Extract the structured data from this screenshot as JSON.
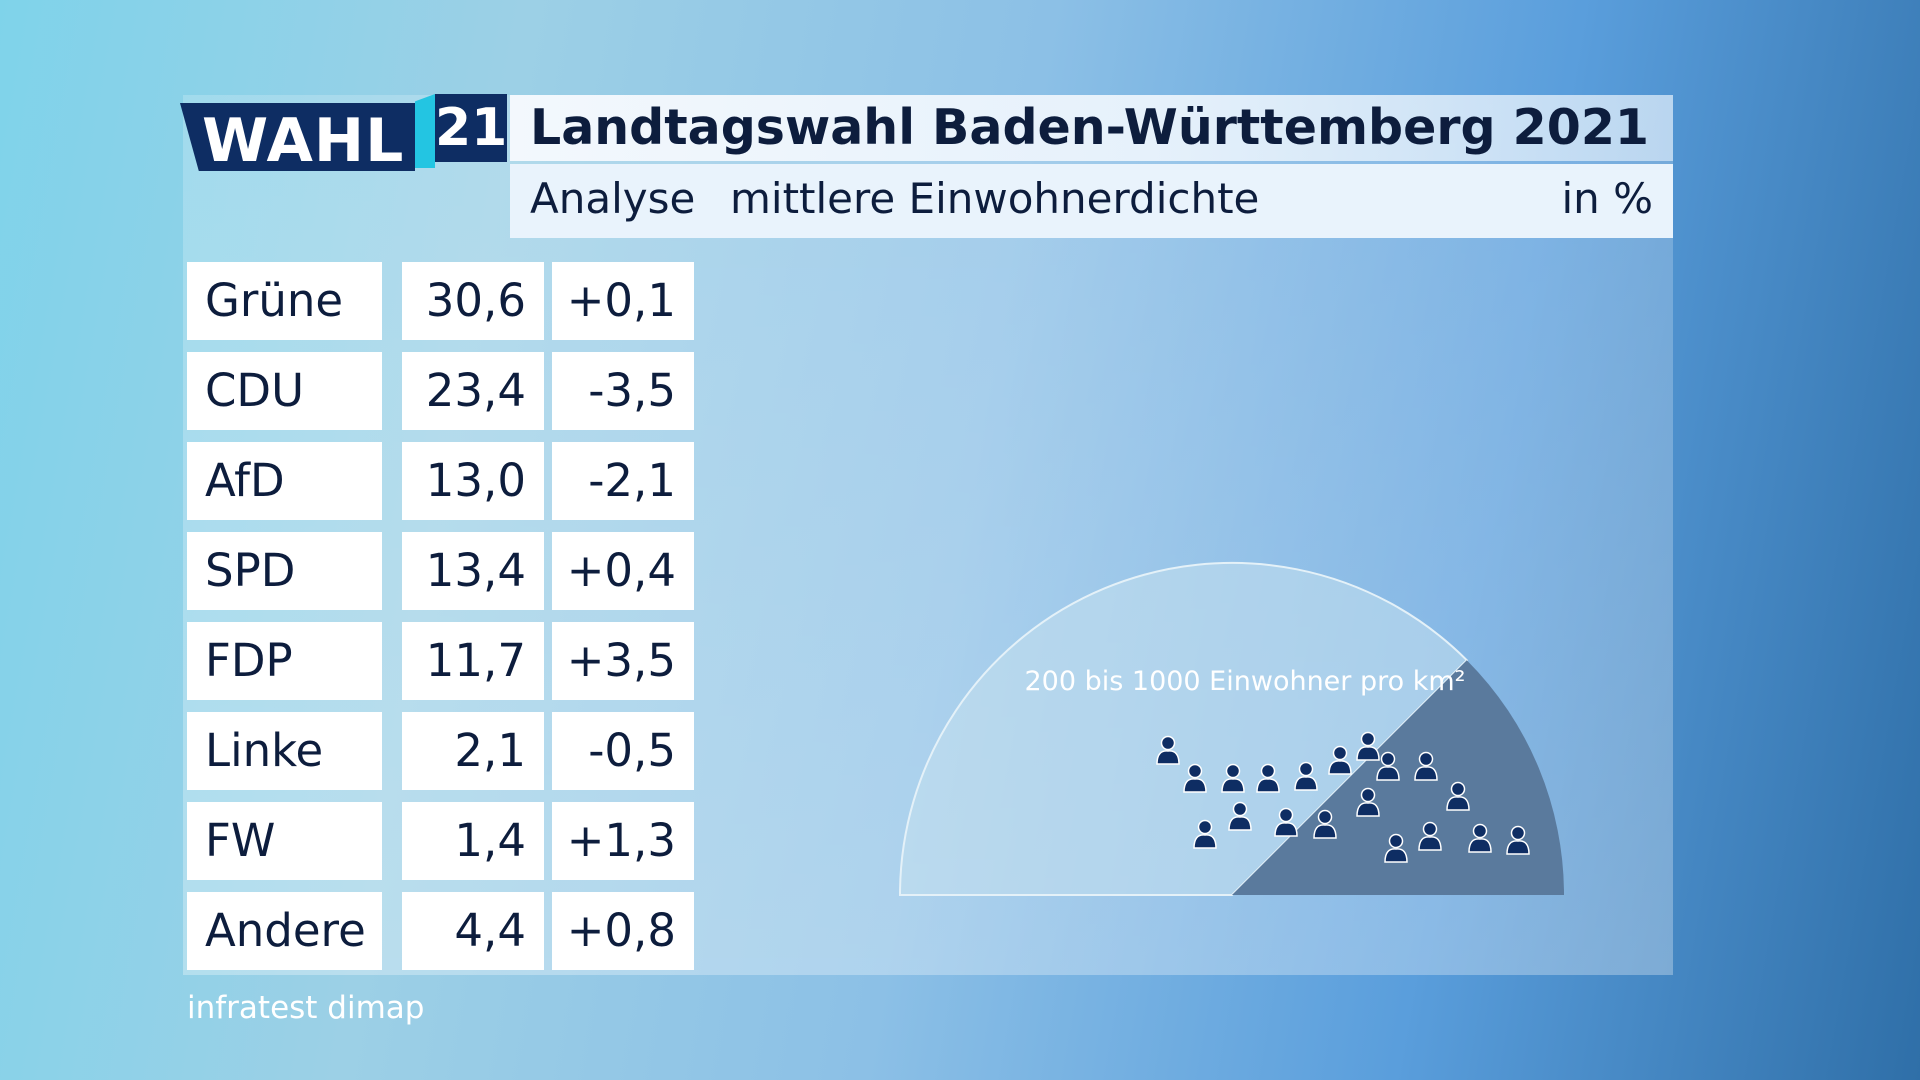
{
  "brand": {
    "logo_word": "WAHL",
    "logo_number": "21"
  },
  "header": {
    "title": "Landtagswahl Baden-Württemberg 2021",
    "subtitle_left": "Analyse",
    "subtitle_middle": "mittlere Einwohnerdichte",
    "unit": "in %"
  },
  "table": {
    "rows": [
      {
        "party": "Grüne",
        "value": "30,6",
        "change": "+0,1"
      },
      {
        "party": "CDU",
        "value": "23,4",
        "change": "-3,5"
      },
      {
        "party": "AfD",
        "value": "13,0",
        "change": "-2,1"
      },
      {
        "party": "SPD",
        "value": "13,4",
        "change": "+0,4"
      },
      {
        "party": "FDP",
        "value": "11,7",
        "change": "+3,5"
      },
      {
        "party": "Linke",
        "value": "2,1",
        "change": "-0,5"
      },
      {
        "party": "FW",
        "value": "1,4",
        "change": "+1,3"
      },
      {
        "party": "Andere",
        "value": "4,4",
        "change": "+0,8"
      }
    ]
  },
  "chart_data": {
    "type": "table",
    "columns": [
      "party",
      "share",
      "change"
    ],
    "rows": [
      [
        "Grüne",
        30.6,
        0.1
      ],
      [
        "CDU",
        23.4,
        -3.5
      ],
      [
        "AfD",
        13.0,
        -2.1
      ],
      [
        "SPD",
        13.4,
        0.4
      ],
      [
        "FDP",
        11.7,
        3.5
      ],
      [
        "Linke",
        2.1,
        -0.5
      ],
      [
        "FW",
        1.4,
        1.3
      ],
      [
        "Andere",
        4.4,
        0.8
      ]
    ],
    "gauge": {
      "label": "200 bis 1000 Einwohner pro km²",
      "highlighted_sector_fraction_of_half_circle": 0.75,
      "icon": "person-icon"
    }
  },
  "footer": {
    "source": "infratest dimap"
  },
  "colors": {
    "navy": "#0e2d63",
    "accent_cyan": "#23c5e2",
    "gauge_dark": "#5a7a9d",
    "gauge_light": "#c5e0ee",
    "icon_fill": "#0e2d63"
  }
}
